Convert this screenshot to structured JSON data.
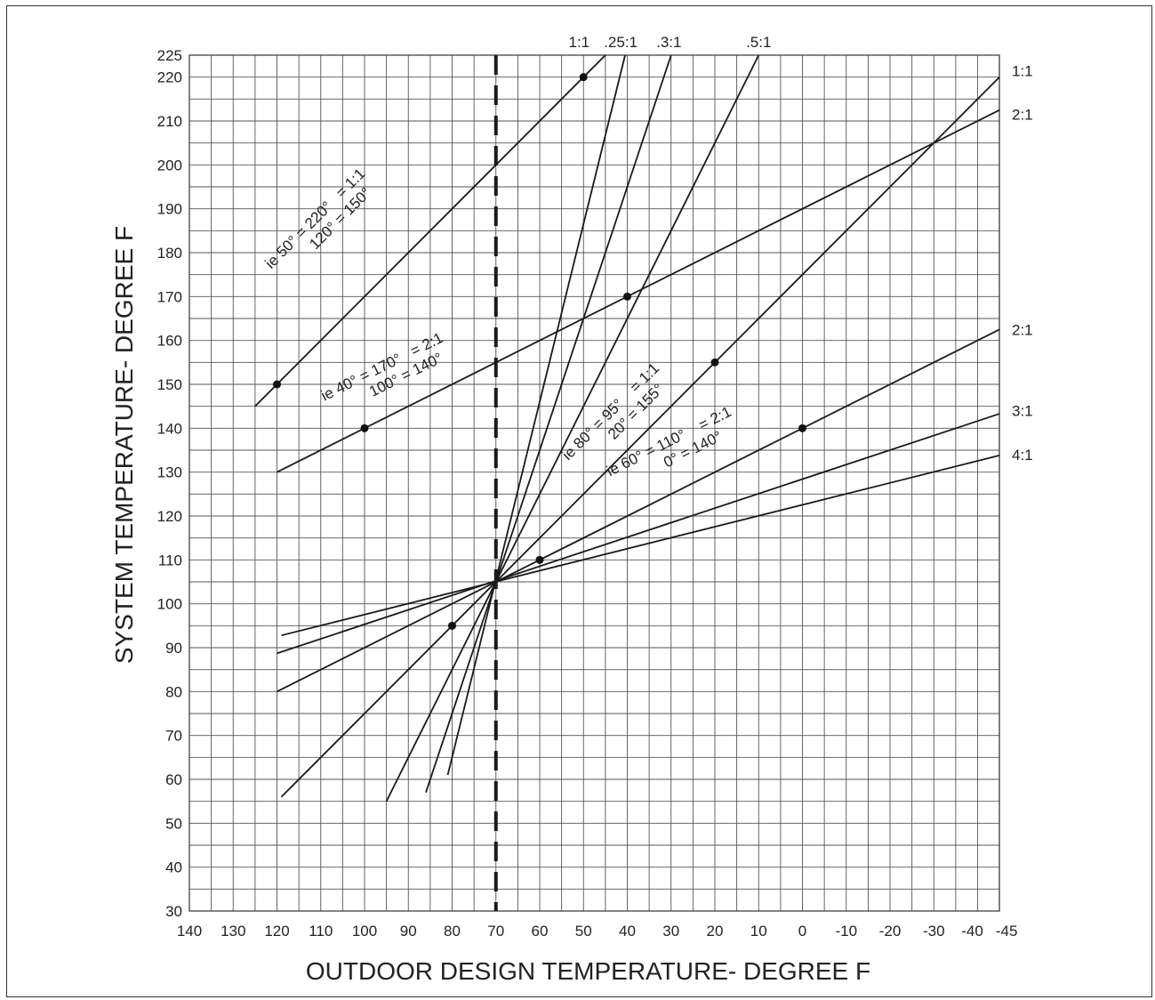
{
  "chart_data": {
    "type": "line",
    "title": "",
    "xlabel": "OUTDOOR DESIGN TEMPERATURE- DEGREE F",
    "ylabel": "SYSTEM TEMPERATURE- DEGREE F",
    "xlim": [
      140,
      -45
    ],
    "ylim": [
      30,
      225
    ],
    "x_reversed": true,
    "grid": true,
    "x_ticks": [
      140,
      130,
      120,
      110,
      100,
      90,
      80,
      70,
      60,
      50,
      40,
      30,
      20,
      10,
      0,
      -10,
      -20,
      -30,
      -40,
      -45
    ],
    "x_tick_labels": [
      "140",
      "130",
      "120",
      "110",
      "100",
      "90",
      "80",
      "70",
      "60",
      "50",
      "40",
      "30",
      "20",
      "10",
      "0",
      "-10",
      "-20",
      "-30",
      "-40",
      "-45"
    ],
    "y_ticks": [
      30,
      40,
      50,
      60,
      70,
      80,
      90,
      100,
      110,
      120,
      130,
      140,
      150,
      160,
      170,
      180,
      190,
      200,
      210,
      220,
      225
    ],
    "y_tick_labels": [
      "30",
      "40",
      "50",
      "60",
      "70",
      "80",
      "90",
      "100",
      "110",
      "120",
      "130",
      "140",
      "150",
      "160",
      "170",
      "180",
      "190",
      "200",
      "210",
      "220",
      "225"
    ],
    "design_reference_line": {
      "x": 70,
      "style": "dashed"
    },
    "series": [
      {
        "name": "1:1",
        "points": [
          [
            125,
            145
          ],
          [
            45,
            225
          ]
        ]
      },
      {
        "name": "2:1",
        "points": [
          [
            120,
            130
          ],
          [
            -45,
            212.5
          ]
        ]
      },
      {
        "name": ".25:1",
        "points": [
          [
            81,
            61
          ],
          [
            40.5,
            225
          ]
        ]
      },
      {
        "name": ".3:1",
        "points": [
          [
            86,
            57
          ],
          [
            30,
            225
          ]
        ]
      },
      {
        "name": ".5:1",
        "points": [
          [
            95,
            55
          ],
          [
            10,
            225
          ]
        ]
      },
      {
        "name": "1:1",
        "points": [
          [
            119,
            56
          ],
          [
            -45,
            220
          ]
        ]
      },
      {
        "name": "2:1",
        "points": [
          [
            120,
            80
          ],
          [
            -45,
            162.5
          ]
        ]
      },
      {
        "name": "3:1",
        "points": [
          [
            120,
            88.7
          ],
          [
            -45,
            143.3
          ]
        ]
      },
      {
        "name": "4:1",
        "points": [
          [
            119,
            92.8
          ],
          [
            -45,
            133.8
          ]
        ]
      }
    ],
    "markers": [
      [
        120,
        150
      ],
      [
        50,
        220
      ],
      [
        100,
        140
      ],
      [
        40,
        170
      ],
      [
        80,
        95
      ],
      [
        20,
        155
      ],
      [
        60,
        110
      ],
      [
        0,
        140
      ]
    ],
    "line_labels_top": [
      {
        "text": "1:1",
        "x": 51
      },
      {
        "text": ".25:1",
        "x": 41.5
      },
      {
        "text": ".3:1",
        "x": 30.5
      },
      {
        "text": ".5:1",
        "x": 10
      }
    ],
    "line_labels_right": [
      {
        "text": "1:1",
        "y": 221.5
      },
      {
        "text": "2:1",
        "y": 211.5
      },
      {
        "text": "2:1",
        "y": 162.5
      },
      {
        "text": "3:1",
        "y": 144
      },
      {
        "text": "4:1",
        "y": 134
      }
    ],
    "annotations": [
      {
        "lines": [
          "ie 50° = 220°   = 1:1",
          "120° = 150°"
        ],
        "x": 110.5,
        "y": 187,
        "angle": 45
      },
      {
        "lines": [
          "ie 40° = 170°   = 2:1",
          "100° = 140°"
        ],
        "x": 95.5,
        "y": 153,
        "angle": 26.6
      },
      {
        "lines": [
          "ie 80° = 95°    = 1:1",
          "20° = 155°"
        ],
        "x": 43,
        "y": 143,
        "angle": 45
      },
      {
        "lines": [
          "ie 60° = 110°    = 2:1",
          "0° = 140°"
        ],
        "x": 30,
        "y": 136,
        "angle": 26.6
      }
    ]
  }
}
